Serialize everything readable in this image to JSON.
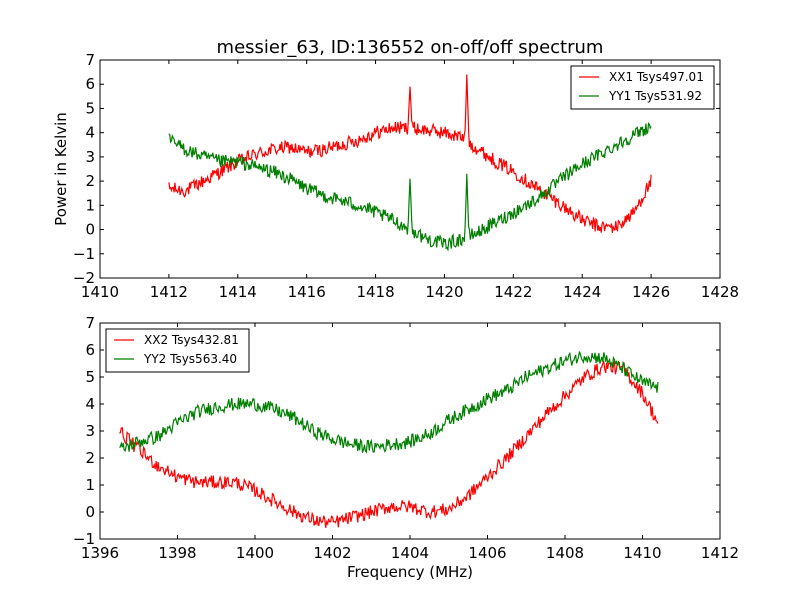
{
  "figure": {
    "title": "messier_63, ID:136552 on-off/off spectrum",
    "xlabel": "Frequency (MHz)",
    "ylabel": "Power in Kelvin"
  },
  "chart_data": [
    {
      "type": "line",
      "xlim": [
        1410,
        1428
      ],
      "ylim": [
        -2,
        7
      ],
      "xticks": [
        1410,
        1412,
        1414,
        1416,
        1418,
        1420,
        1422,
        1424,
        1426,
        1428
      ],
      "yticks": [
        -2,
        -1,
        0,
        1,
        2,
        3,
        4,
        5,
        6,
        7
      ],
      "ytick_labels": [
        "−2",
        "−1",
        "0",
        "1",
        "2",
        "3",
        "4",
        "5",
        "6",
        "7"
      ],
      "legend": "top-right",
      "grid": false,
      "noise": 0.28,
      "series": [
        {
          "name": "XX1 Tsys497.01",
          "color": "#ff0000",
          "x": [
            1412,
            1412.5,
            1413,
            1413.5,
            1414,
            1414.5,
            1415,
            1415.5,
            1416,
            1416.5,
            1417,
            1417.5,
            1418,
            1418.5,
            1419,
            1419.5,
            1420,
            1420.5,
            1421,
            1421.5,
            1422,
            1422.5,
            1423,
            1423.5,
            1424,
            1424.5,
            1425,
            1425.5,
            1426
          ],
          "y": [
            1.7,
            1.6,
            2.0,
            2.4,
            2.8,
            3.1,
            3.3,
            3.4,
            3.2,
            3.3,
            3.5,
            3.7,
            4.0,
            4.2,
            4.2,
            4.1,
            4.0,
            3.8,
            3.3,
            2.8,
            2.4,
            1.9,
            1.4,
            0.9,
            0.4,
            0.1,
            0.1,
            0.7,
            2.0
          ],
          "spikes": [
            {
              "x": 1419.0,
              "y": 5.9
            },
            {
              "x": 1420.65,
              "y": 6.4
            }
          ]
        },
        {
          "name": "YY1 Tsys531.92",
          "color": "#007f00",
          "x": [
            1412,
            1412.5,
            1413,
            1413.5,
            1414,
            1414.5,
            1415,
            1415.5,
            1416,
            1416.5,
            1417,
            1417.5,
            1418,
            1418.5,
            1419,
            1419.5,
            1420,
            1420.5,
            1421,
            1421.5,
            1422,
            1422.5,
            1423,
            1423.5,
            1424,
            1424.5,
            1425,
            1425.5,
            1426
          ],
          "y": [
            3.7,
            3.3,
            3.0,
            2.8,
            2.8,
            2.6,
            2.4,
            2.1,
            1.7,
            1.4,
            1.2,
            1.0,
            0.7,
            0.4,
            0.0,
            -0.4,
            -0.6,
            -0.4,
            -0.1,
            0.3,
            0.7,
            1.1,
            1.6,
            2.2,
            2.7,
            3.1,
            3.5,
            3.9,
            4.3
          ],
          "spikes": [
            {
              "x": 1419.0,
              "y": 2.1
            },
            {
              "x": 1420.65,
              "y": 2.3
            }
          ]
        }
      ]
    },
    {
      "type": "line",
      "xlim": [
        1396,
        1412
      ],
      "ylim": [
        -1,
        7
      ],
      "xticks": [
        1396,
        1398,
        1400,
        1402,
        1404,
        1406,
        1408,
        1410,
        1412
      ],
      "yticks": [
        -1,
        0,
        1,
        2,
        3,
        4,
        5,
        6,
        7
      ],
      "ytick_labels": [
        "−1",
        "0",
        "1",
        "2",
        "3",
        "4",
        "5",
        "6",
        "7"
      ],
      "legend": "top-left",
      "grid": false,
      "noise": 0.25,
      "series": [
        {
          "name": "XX2 Tsys432.81",
          "color": "#ff0000",
          "x": [
            1396.5,
            1397,
            1397.5,
            1398,
            1398.5,
            1399,
            1399.5,
            1400,
            1400.5,
            1401,
            1401.5,
            1402,
            1402.5,
            1403,
            1403.5,
            1404,
            1404.5,
            1405,
            1405.5,
            1406,
            1406.5,
            1407,
            1407.5,
            1408,
            1408.5,
            1409,
            1409.5,
            1410,
            1410.4
          ],
          "y": [
            3.0,
            2.3,
            1.7,
            1.3,
            1.1,
            1.1,
            1.1,
            0.8,
            0.4,
            0.0,
            -0.3,
            -0.4,
            -0.2,
            0.0,
            0.2,
            0.2,
            0.0,
            0.1,
            0.6,
            1.3,
            2.0,
            2.8,
            3.6,
            4.3,
            5.0,
            5.4,
            5.3,
            4.4,
            3.3
          ]
        },
        {
          "name": "YY2 Tsys563.40",
          "color": "#007f00",
          "x": [
            1396.5,
            1397,
            1397.5,
            1398,
            1398.5,
            1399,
            1399.5,
            1400,
            1400.5,
            1401,
            1401.5,
            1402,
            1402.5,
            1403,
            1403.5,
            1404,
            1404.5,
            1405,
            1405.5,
            1406,
            1406.5,
            1407,
            1407.5,
            1408,
            1408.5,
            1409,
            1409.5,
            1410,
            1410.4
          ],
          "y": [
            2.3,
            2.6,
            2.8,
            3.3,
            3.7,
            3.9,
            4.0,
            4.0,
            3.8,
            3.5,
            3.0,
            2.7,
            2.5,
            2.4,
            2.5,
            2.6,
            2.9,
            3.4,
            3.8,
            4.2,
            4.5,
            5.0,
            5.3,
            5.6,
            5.8,
            5.7,
            5.3,
            4.8,
            4.6
          ]
        }
      ]
    }
  ]
}
